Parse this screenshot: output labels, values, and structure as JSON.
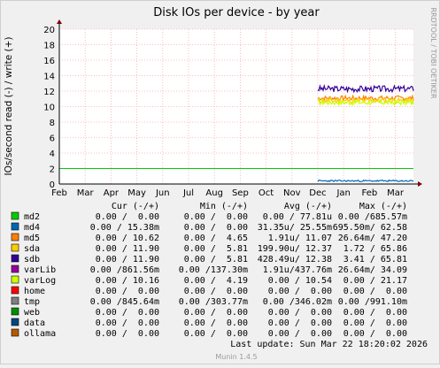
{
  "chart_data": {
    "type": "line",
    "title": "Disk IOs per device - by year",
    "ylabel": "IOs/second read (-) / write (+)",
    "side_label": "RRDTOOL / TOBI OETIKER",
    "footer": "Munin 1.4.5",
    "ylim": [
      0,
      20
    ],
    "yticks": [
      0,
      2,
      4,
      6,
      8,
      10,
      12,
      14,
      16,
      18,
      20
    ],
    "x_ticks": [
      "Feb",
      "Mar",
      "Apr",
      "May",
      "Jun",
      "Jul",
      "Aug",
      "Sep",
      "Oct",
      "Nov",
      "Dec",
      "Jan",
      "Feb",
      "Mar"
    ],
    "x_domain": [
      0,
      13.7
    ],
    "grid": true,
    "hline": {
      "value": 2,
      "color": "#00cc00"
    },
    "series": [
      {
        "name": "varLib",
        "color": "#330099",
        "x_start": 10.0,
        "x_end": 13.7,
        "y_min": 11.9,
        "y_max": 12.7,
        "seed": 3
      },
      {
        "name": "sda",
        "color": "#ff8000",
        "x_start": 10.0,
        "x_end": 13.7,
        "y_min": 10.8,
        "y_max": 11.4,
        "seed": 7
      },
      {
        "name": "sdb",
        "color": "#ffcc00",
        "x_start": 10.0,
        "x_end": 13.7,
        "y_min": 10.4,
        "y_max": 11.1,
        "seed": 11
      },
      {
        "name": "varLog",
        "color": "#ccff00",
        "x_start": 10.0,
        "x_end": 13.7,
        "y_min": 10.2,
        "y_max": 10.9,
        "seed": 17
      },
      {
        "name": "md4",
        "color": "#0066b3",
        "x_start": 10.0,
        "x_end": 13.7,
        "y_min": 0.3,
        "y_max": 0.5,
        "seed": 23
      }
    ],
    "legend": {
      "headers": [
        "Cur (-/+)",
        "Min (-/+)",
        "Avg (-/+)",
        "Max (-/+)"
      ],
      "rows": [
        {
          "name": "md2",
          "color": "#00cc00",
          "cur": "0.00 /  0.00",
          "min": "0.00 /  0.00",
          "avg": "0.00 / 77.81u",
          "max": "0.00 /685.57m"
        },
        {
          "name": "md4",
          "color": "#0066b3",
          "cur": "0.00 / 15.38m",
          "min": "0.00 /  0.00",
          "avg": "31.35u/ 25.55m",
          "max": "695.50m/ 62.58"
        },
        {
          "name": "md5",
          "color": "#ff8000",
          "cur": "0.00 / 10.62",
          "min": "0.00 /  4.65",
          "avg": "1.91u/ 11.07",
          "max": "26.64m/ 47.20"
        },
        {
          "name": "sda",
          "color": "#ffcc00",
          "cur": "0.00 / 11.90",
          "min": "0.00 /  5.81",
          "avg": "199.90u/ 12.37",
          "max": "1.72 / 65.86"
        },
        {
          "name": "sdb",
          "color": "#330099",
          "cur": "0.00 / 11.90",
          "min": "0.00 /  5.81",
          "avg": "428.49u/ 12.38",
          "max": "3.41 / 65.81"
        },
        {
          "name": "varLib",
          "color": "#990099",
          "cur": "0.00 /861.56m",
          "min": "0.00 /137.30m",
          "avg": "1.91u/437.76m",
          "max": "26.64m/ 34.09"
        },
        {
          "name": "varLog",
          "color": "#ccff00",
          "cur": "0.00 / 10.16",
          "min": "0.00 /  4.19",
          "avg": "0.00 / 10.54",
          "max": "0.00 / 21.17"
        },
        {
          "name": "home",
          "color": "#ff0000",
          "cur": "0.00 /  0.00",
          "min": "0.00 /  0.00",
          "avg": "0.00 /  0.00",
          "max": "0.00 /  0.00"
        },
        {
          "name": "tmp",
          "color": "#808080",
          "cur": "0.00 /845.64m",
          "min": "0.00 /303.77m",
          "avg": "0.00 /346.02m",
          "max": "0.00 /991.10m"
        },
        {
          "name": "web",
          "color": "#008f00",
          "cur": "0.00 /  0.00",
          "min": "0.00 /  0.00",
          "avg": "0.00 /  0.00",
          "max": "0.00 /  0.00"
        },
        {
          "name": "data",
          "color": "#00487d",
          "cur": "0.00 /  0.00",
          "min": "0.00 /  0.00",
          "avg": "0.00 /  0.00",
          "max": "0.00 /  0.00"
        },
        {
          "name": "ollama",
          "color": "#b35a00",
          "cur": "0.00 /  0.00",
          "min": "0.00 /  0.00",
          "avg": "0.00 /  0.00",
          "max": "0.00 /  0.00"
        }
      ]
    },
    "last_update": "Last update:  Sun Mar 22 18:20:02 2026"
  }
}
